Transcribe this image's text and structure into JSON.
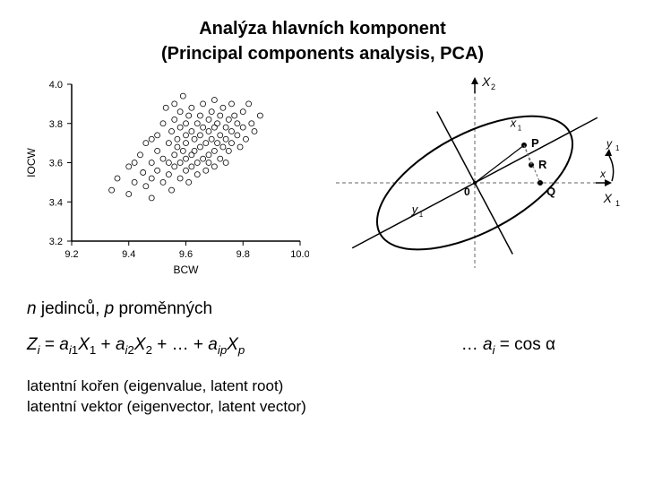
{
  "title": {
    "line1": "Analýza hlavních komponent",
    "line2": "(Principal components analysis, PCA)"
  },
  "scatter_chart": {
    "type": "scatter",
    "xlabel": "BCW",
    "ylabel": "IOCW",
    "xlim": [
      9.2,
      10.0
    ],
    "ylim": [
      3.2,
      4.0
    ],
    "xticks": [
      9.2,
      9.4,
      9.6,
      9.8,
      10.0
    ],
    "yticks": [
      3.2,
      3.4,
      3.6,
      3.8,
      4.0
    ],
    "label_fontsize": 12,
    "tick_fontsize": 11,
    "marker_style": "open-circle",
    "marker_size": 3,
    "marker_color": "#000000",
    "background_color": "#ffffff",
    "axis_color": "#000000",
    "points": [
      [
        9.34,
        3.46
      ],
      [
        9.36,
        3.52
      ],
      [
        9.4,
        3.44
      ],
      [
        9.4,
        3.58
      ],
      [
        9.42,
        3.6
      ],
      [
        9.42,
        3.5
      ],
      [
        9.44,
        3.64
      ],
      [
        9.45,
        3.55
      ],
      [
        9.46,
        3.7
      ],
      [
        9.46,
        3.48
      ],
      [
        9.48,
        3.6
      ],
      [
        9.48,
        3.72
      ],
      [
        9.48,
        3.52
      ],
      [
        9.48,
        3.42
      ],
      [
        9.5,
        3.66
      ],
      [
        9.5,
        3.56
      ],
      [
        9.5,
        3.74
      ],
      [
        9.52,
        3.8
      ],
      [
        9.52,
        3.62
      ],
      [
        9.52,
        3.5
      ],
      [
        9.53,
        3.88
      ],
      [
        9.54,
        3.7
      ],
      [
        9.54,
        3.6
      ],
      [
        9.54,
        3.54
      ],
      [
        9.55,
        3.76
      ],
      [
        9.55,
        3.46
      ],
      [
        9.56,
        3.82
      ],
      [
        9.56,
        3.64
      ],
      [
        9.56,
        3.58
      ],
      [
        9.56,
        3.9
      ],
      [
        9.57,
        3.72
      ],
      [
        9.57,
        3.68
      ],
      [
        9.58,
        3.78
      ],
      [
        9.58,
        3.6
      ],
      [
        9.58,
        3.52
      ],
      [
        9.58,
        3.86
      ],
      [
        9.59,
        3.94
      ],
      [
        9.59,
        3.66
      ],
      [
        9.6,
        3.74
      ],
      [
        9.6,
        3.8
      ],
      [
        9.6,
        3.56
      ],
      [
        9.6,
        3.62
      ],
      [
        9.6,
        3.7
      ],
      [
        9.61,
        3.84
      ],
      [
        9.61,
        3.5
      ],
      [
        9.62,
        3.76
      ],
      [
        9.62,
        3.64
      ],
      [
        9.62,
        3.58
      ],
      [
        9.62,
        3.88
      ],
      [
        9.63,
        3.72
      ],
      [
        9.63,
        3.66
      ],
      [
        9.64,
        3.8
      ],
      [
        9.64,
        3.6
      ],
      [
        9.64,
        3.54
      ],
      [
        9.65,
        3.84
      ],
      [
        9.65,
        3.74
      ],
      [
        9.65,
        3.68
      ],
      [
        9.66,
        3.78
      ],
      [
        9.66,
        3.62
      ],
      [
        9.66,
        3.9
      ],
      [
        9.67,
        3.7
      ],
      [
        9.67,
        3.56
      ],
      [
        9.68,
        3.82
      ],
      [
        9.68,
        3.64
      ],
      [
        9.68,
        3.76
      ],
      [
        9.68,
        3.6
      ],
      [
        9.69,
        3.86
      ],
      [
        9.69,
        3.72
      ],
      [
        9.7,
        3.78
      ],
      [
        9.7,
        3.66
      ],
      [
        9.7,
        3.58
      ],
      [
        9.7,
        3.92
      ],
      [
        9.71,
        3.8
      ],
      [
        9.71,
        3.7
      ],
      [
        9.72,
        3.84
      ],
      [
        9.72,
        3.62
      ],
      [
        9.72,
        3.74
      ],
      [
        9.73,
        3.88
      ],
      [
        9.73,
        3.68
      ],
      [
        9.74,
        3.78
      ],
      [
        9.74,
        3.72
      ],
      [
        9.74,
        3.6
      ],
      [
        9.75,
        3.82
      ],
      [
        9.75,
        3.66
      ],
      [
        9.76,
        3.9
      ],
      [
        9.76,
        3.76
      ],
      [
        9.76,
        3.7
      ],
      [
        9.77,
        3.84
      ],
      [
        9.78,
        3.74
      ],
      [
        9.78,
        3.8
      ],
      [
        9.79,
        3.68
      ],
      [
        9.8,
        3.86
      ],
      [
        9.8,
        3.78
      ],
      [
        9.81,
        3.72
      ],
      [
        9.82,
        3.9
      ],
      [
        9.83,
        3.8
      ],
      [
        9.84,
        3.76
      ],
      [
        9.86,
        3.84
      ]
    ]
  },
  "ellipse_diagram": {
    "type": "diagram",
    "axis_label_x": "X₁",
    "axis_label_y": "X₂",
    "pc1_label": "y₁",
    "pc2_label": "x₁",
    "origin_label": "0",
    "point_P": "P",
    "point_Q": "Q",
    "point_R": "R",
    "arc_label": "y₁",
    "background_color": "#ffffff",
    "axis_color": "#000000",
    "dashed_color": "#666666",
    "ellipse_rotation_deg": 28,
    "ellipse_rx": 120,
    "ellipse_ry": 55,
    "line_width": 2
  },
  "text": {
    "n_individuals": "n jedinců, p proměnných",
    "equation_lhs": "Zᵢ = aᵢ₁X₁ + aᵢ₂X₂ + … + aᵢₚXₚ",
    "equation_rhs": "… aᵢ = cos α",
    "footnote1": "latentní kořen (eigenvalue, latent root)",
    "footnote2": "latentní vektor (eigenvector, latent vector)"
  },
  "colors": {
    "text": "#000000",
    "background": "#ffffff"
  }
}
